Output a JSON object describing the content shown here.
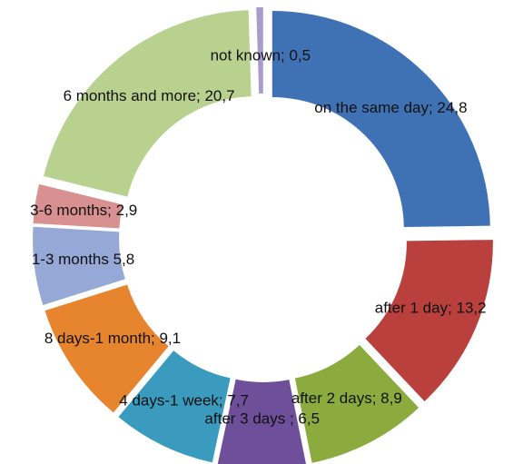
{
  "chart_data": {
    "type": "donut",
    "values": [
      24.8,
      13.2,
      8.9,
      6.5,
      7.7,
      9.1,
      5.8,
      2.9,
      20.7,
      0.5
    ],
    "value_labels": [
      "on the same day; 24,8",
      "after 1 day; 13,2",
      "after 2 days; 8,9",
      "after 3 days ; 6,5",
      "4 days-1 week; 7,7",
      "8 days-1 month; 9,1",
      "1-3 months 5,8",
      "3-6 months; 2,9",
      "6 months and more; 20,7",
      "not known; 0,5"
    ],
    "colors": [
      "#3f72b4",
      "#b9403c",
      "#8bab3f",
      "#6d4f9a",
      "#3a9bbf",
      "#e6852d",
      "#95a8d6",
      "#d89090",
      "#b8d18e",
      "#a99ccd"
    ]
  }
}
